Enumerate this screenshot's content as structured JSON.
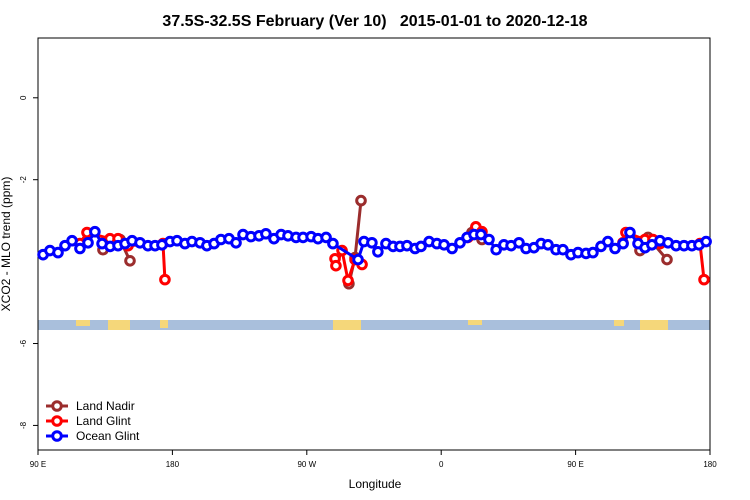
{
  "chart_data": {
    "type": "line",
    "title": "37.5S-32.5S February (Ver 10)   2015-01-01 to 2020-12-18",
    "xlabel": "Longitude",
    "ylabel": "XCO2 - MLO trend (ppm)",
    "xlim": [
      90,
      540
    ],
    "ylim": [
      -8.6,
      1.46
    ],
    "xticks": [
      {
        "value": 90,
        "label": "90 E"
      },
      {
        "value": 180,
        "label": "180"
      },
      {
        "value": 270,
        "label": "90 W"
      },
      {
        "value": 360,
        "label": "0"
      },
      {
        "value": 450,
        "label": "90 E"
      },
      {
        "value": 540,
        "label": "180"
      }
    ],
    "yticks": [
      0,
      -2,
      -6,
      -8
    ],
    "legend": "bottom-left",
    "series": [
      {
        "name": "Land Nadir",
        "color": "#9b2d2d",
        "x": [
          133.5,
          138.2,
          144.9,
          151.6,
          null,
          298.2,
          302.3,
          306.3,
          null,
          380.6,
          387.3,
          null,
          493.1,
          498.5,
          511.2
        ],
        "values": [
          -3.71,
          -3.46,
          -3.46,
          -3.98,
          null,
          -4.54,
          -3.9,
          -2.51,
          null,
          -3.29,
          -3.46,
          null,
          -3.73,
          -3.41,
          -3.95
        ]
      },
      {
        "name": "Land Glint",
        "color": "#ff0000",
        "x": [
          118.1,
          122.8,
          138.2,
          143.6,
          150.3,
          173.7,
          175.0,
          null,
          288.9,
          289.5,
          293.6,
          297.6,
          302.3,
          307.0,
          null,
          377.9,
          383.2,
          387.3,
          null,
          481.7,
          483.7,
          496.4,
          501.8,
          506.5,
          533.3,
          536.0
        ],
        "values": [
          -3.56,
          -3.29,
          -3.44,
          -3.44,
          -3.61,
          -3.56,
          -4.44,
          null,
          -3.93,
          -4.1,
          -3.73,
          -4.46,
          -3.95,
          -4.07,
          null,
          -3.41,
          -3.15,
          -3.27,
          null,
          -3.54,
          -3.29,
          -3.46,
          -3.46,
          -3.56,
          -3.56,
          -4.44
        ]
      },
      {
        "name": "Ocean Glint",
        "color": "#0000ff",
        "x": [
          93.4,
          98.0,
          103.4,
          108.1,
          112.8,
          118.1,
          123.5,
          128.1,
          132.9,
          138.3,
          143.6,
          148.3,
          153.0,
          158.3,
          163.6,
          168.4,
          173.0,
          178.4,
          183.1,
          188.4,
          193.1,
          198.5,
          203.1,
          207.9,
          212.5,
          217.9,
          222.6,
          227.3,
          232.6,
          238.0,
          242.6,
          248.0,
          252.8,
          257.4,
          262.8,
          267.5,
          272.9,
          277.5,
          282.9,
          287.5,
          304.3,
          308.3,
          313.6,
          317.6,
          323.0,
          327.8,
          332.4,
          337.1,
          342.5,
          346.5,
          351.9,
          357.1,
          361.9,
          367.3,
          372.6,
          377.3,
          382.0,
          386.6,
          392.0,
          396.8,
          402.0,
          406.8,
          412.1,
          416.8,
          422.1,
          426.9,
          431.5,
          436.9,
          441.5,
          446.9,
          451.6,
          457.0,
          461.6,
          467.0,
          471.6,
          476.4,
          481.8,
          486.4,
          491.8,
          496.5,
          501.1,
          506.5,
          511.9,
          517.3,
          522.6,
          527.9,
          532.6,
          537.4
        ],
        "values": [
          -3.83,
          -3.73,
          -3.78,
          -3.61,
          -3.49,
          -3.68,
          -3.54,
          -3.27,
          -3.56,
          -3.63,
          -3.61,
          -3.56,
          -3.49,
          -3.54,
          -3.61,
          -3.61,
          -3.59,
          -3.51,
          -3.49,
          -3.56,
          -3.51,
          -3.54,
          -3.61,
          -3.56,
          -3.46,
          -3.44,
          -3.54,
          -3.34,
          -3.39,
          -3.37,
          -3.32,
          -3.44,
          -3.34,
          -3.37,
          -3.41,
          -3.41,
          -3.39,
          -3.44,
          -3.41,
          -3.56,
          -3.95,
          -3.51,
          -3.54,
          -3.76,
          -3.56,
          -3.63,
          -3.63,
          -3.61,
          -3.68,
          -3.63,
          -3.51,
          -3.56,
          -3.59,
          -3.68,
          -3.54,
          -3.41,
          -3.34,
          -3.34,
          -3.46,
          -3.71,
          -3.59,
          -3.61,
          -3.54,
          -3.68,
          -3.66,
          -3.56,
          -3.59,
          -3.71,
          -3.71,
          -3.83,
          -3.78,
          -3.8,
          -3.78,
          -3.63,
          -3.51,
          -3.68,
          -3.56,
          -3.29,
          -3.56,
          -3.66,
          -3.59,
          -3.49,
          -3.54,
          -3.61,
          -3.61,
          -3.61,
          -3.59,
          -3.51
        ]
      }
    ]
  }
}
